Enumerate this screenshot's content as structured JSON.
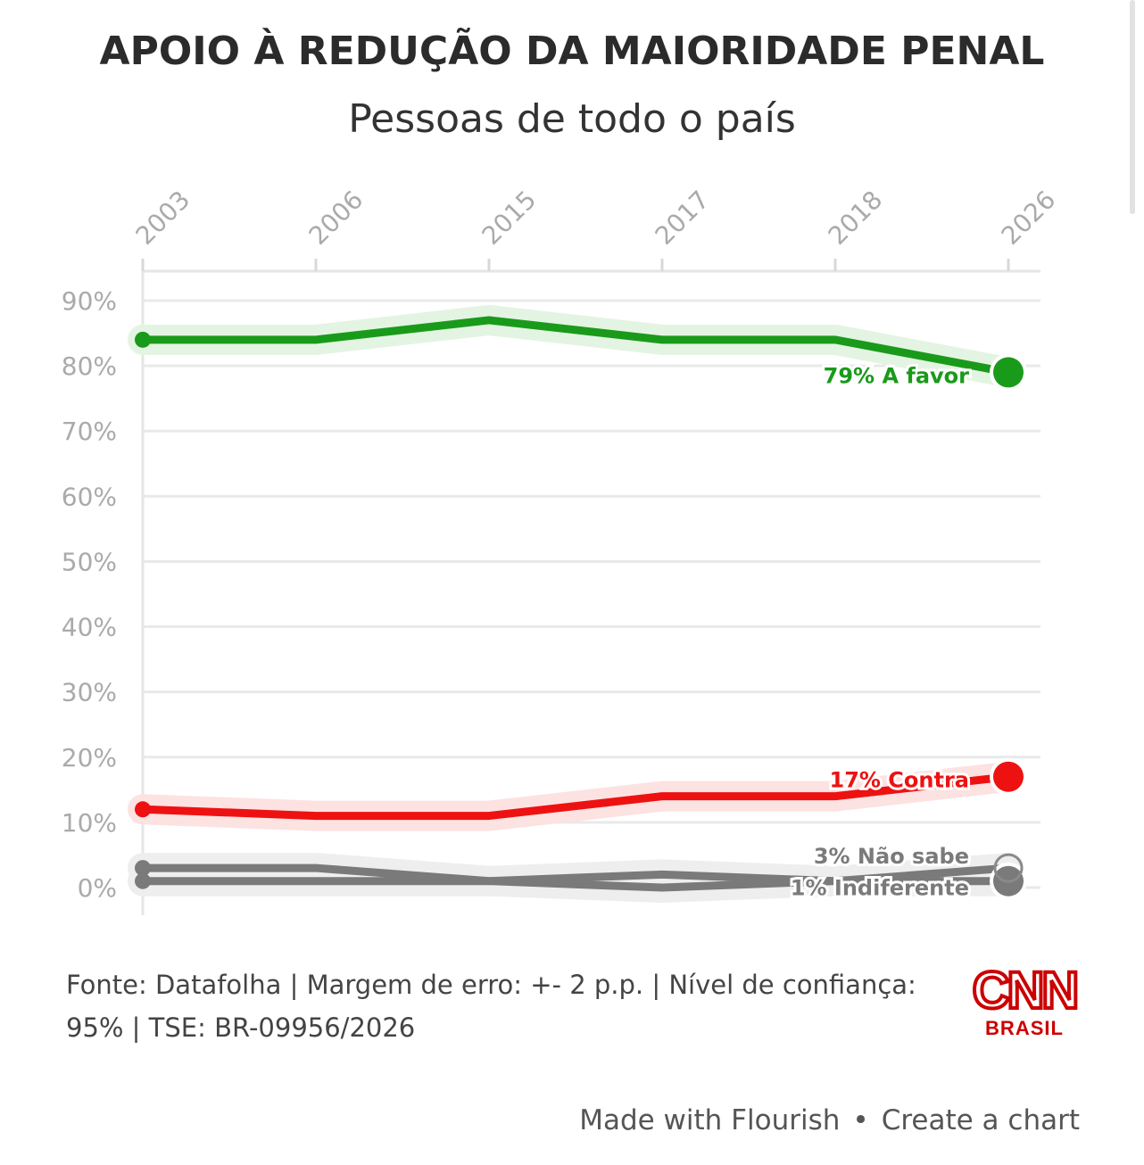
{
  "header": {
    "title": "APOIO À REDUÇÃO DA MAIORIDADE PENAL",
    "subtitle": "Pessoas de todo o país"
  },
  "chart_data": {
    "type": "line",
    "x": [
      "2003",
      "2006",
      "2015",
      "2017",
      "2018",
      "2026"
    ],
    "ylim": [
      0,
      90
    ],
    "yticks": [
      "0%",
      "10%",
      "20%",
      "30%",
      "40%",
      "50%",
      "60%",
      "70%",
      "80%",
      "90%"
    ],
    "grid": true,
    "series": [
      {
        "name": "A favor",
        "label": "79% A favor",
        "color": "#1a9a1a",
        "halo": "#e3f4e3",
        "values": [
          84,
          84,
          87,
          84,
          84,
          79
        ]
      },
      {
        "name": "Contra",
        "label": "17% Contra",
        "color": "#ee1111",
        "halo": "#fde2e2",
        "values": [
          12,
          11,
          11,
          14,
          14,
          17
        ]
      },
      {
        "name": "Não sabe",
        "label": "3% Não sabe",
        "color": "#7a7a7a",
        "halo": "#eeeeee",
        "values": [
          3,
          3,
          1,
          2,
          1,
          3
        ]
      },
      {
        "name": "Indiferente",
        "label": "1% Indiferente",
        "color": "#7a7a7a",
        "halo": "#eeeeee",
        "values": [
          1,
          1,
          1,
          0,
          1,
          1
        ]
      }
    ]
  },
  "source_text": "Fonte: Datafolha | Margem de erro: +- 2 p.p. | Nível de confiança: 95% | TSE: BR-09956/2026",
  "logo": {
    "wordmark": "CNN",
    "sub": "BRASIL",
    "color": "#cc0000"
  },
  "footer": {
    "made_with": "Made with Flourish",
    "separator": "•",
    "create": "Create a chart"
  }
}
